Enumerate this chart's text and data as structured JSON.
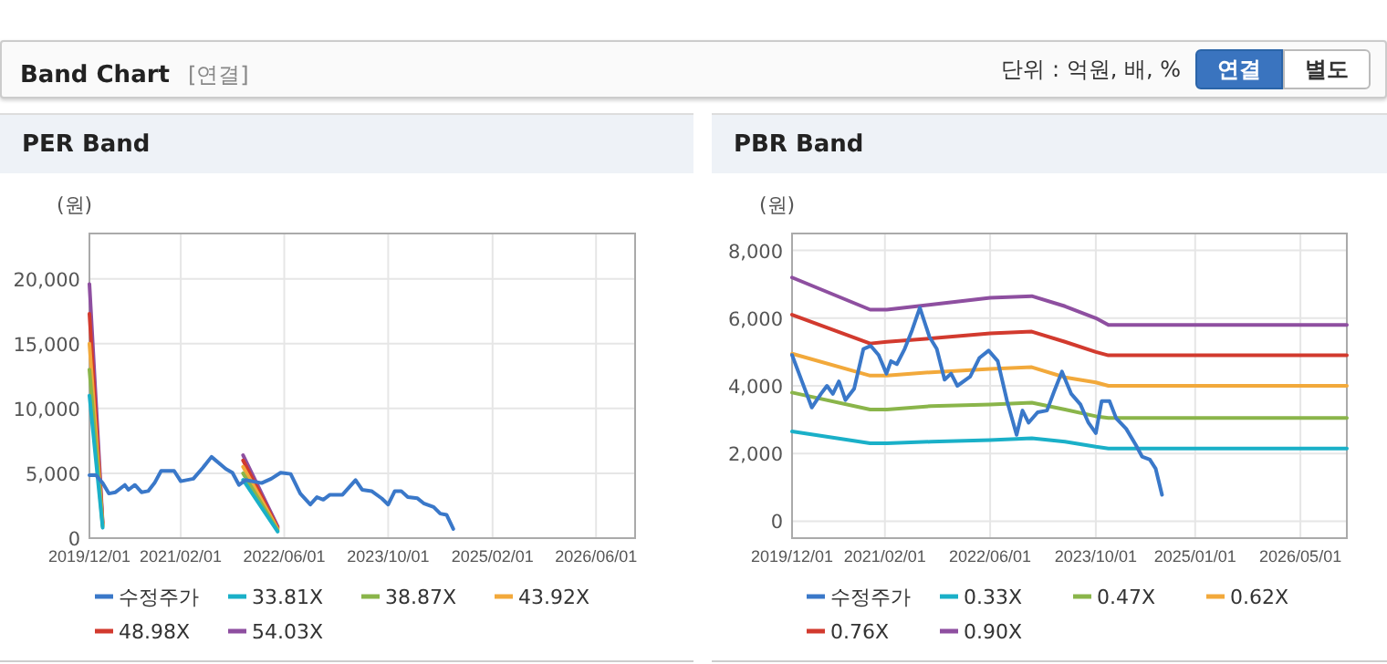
{
  "chart_data": [
    {
      "type": "other",
      "title": "Band Chart",
      "annotations": [
        "[연결]",
        "단위 : 억원, 배, %",
        "연결",
        "별도"
      ]
    },
    {
      "type": "line",
      "title": "PER Band",
      "ylabel": "(원)",
      "grid": true,
      "legend": "bottom",
      "xlim": [
        "2019-12-01",
        "2026-12-01"
      ],
      "ylim": [
        0,
        23500
      ],
      "xticks": [
        {
          "value": "2019-12-01",
          "label": "2019/12/01"
        },
        {
          "value": "2021-02-01",
          "label": "2021/02/01"
        },
        {
          "value": "2022-06-01",
          "label": "2022/06/01"
        },
        {
          "value": "2023-10-01",
          "label": "2023/10/01"
        },
        {
          "value": "2025-02-01",
          "label": "2025/02/01"
        },
        {
          "value": "2026-06-01",
          "label": "2026/06/01"
        }
      ],
      "yticks": [
        0,
        {
          "value": 5000,
          "label": "5,000"
        },
        {
          "value": 10000,
          "label": "10,000"
        },
        {
          "value": 15000,
          "label": "15,000"
        },
        {
          "value": 20000,
          "label": "20,000"
        }
      ],
      "series": [
        {
          "name": "수정주가",
          "color": "#3a78c9",
          "x": [
            "2019-12-01",
            "2020-01-01",
            "2020-02-01",
            "2020-03-01",
            "2020-04-01",
            "2020-05-15",
            "2020-06-01",
            "2020-07-01",
            "2020-08-01",
            "2020-09-01",
            "2020-10-01",
            "2020-11-01",
            "2021-01-01",
            "2021-02-01",
            "2021-04-01",
            "2021-05-15",
            "2021-06-25",
            "2021-09-01",
            "2021-10-01",
            "2021-11-01",
            "2021-12-01",
            "2022-02-15",
            "2022-04-01",
            "2022-05-15",
            "2022-07-01",
            "2022-08-15",
            "2022-10-01",
            "2022-11-01",
            "2022-12-01",
            "2023-01-01",
            "2023-03-01",
            "2023-05-01",
            "2023-06-01",
            "2023-07-15",
            "2023-09-01",
            "2023-10-01",
            "2023-11-01",
            "2023-12-01",
            "2024-01-01",
            "2024-02-15",
            "2024-03-15",
            "2024-05-01",
            "2024-06-01",
            "2024-07-01",
            "2024-08-01"
          ],
          "values": [
            4860,
            4860,
            4250,
            3440,
            3540,
            4100,
            3730,
            4100,
            3540,
            3630,
            4250,
            5190,
            5190,
            4390,
            4580,
            5420,
            6270,
            5330,
            5050,
            4100,
            4480,
            4250,
            4580,
            5050,
            4950,
            3440,
            2590,
            3160,
            2970,
            3350,
            3350,
            4480,
            3730,
            3630,
            3060,
            2590,
            3630,
            3630,
            3160,
            3070,
            2690,
            2400,
            1890,
            1790,
            710
          ]
        },
        {
          "name": "33.81X",
          "color": "#1ab0c8",
          "x": [
            "2019-12-01",
            "2020-02-01",
            "2021-01-01",
            "2021-11-20",
            "2022-05-01"
          ],
          "values": [
            11000,
            800,
            null,
            4500,
            500
          ]
        },
        {
          "name": "38.87X",
          "color": "#8ab54a",
          "x": [
            "2019-12-01",
            "2020-02-01",
            "2021-01-01",
            "2021-11-20",
            "2022-05-01"
          ],
          "values": [
            13000,
            900,
            null,
            5000,
            600
          ]
        },
        {
          "name": "43.92X",
          "color": "#f2a93b",
          "x": [
            "2019-12-01",
            "2020-02-01",
            "2021-01-01",
            "2021-11-20",
            "2022-05-01"
          ],
          "values": [
            15000,
            1000,
            null,
            5500,
            700
          ]
        },
        {
          "name": "48.98X",
          "color": "#d23a2e",
          "x": [
            "2019-12-01",
            "2020-02-01",
            "2021-01-01",
            "2021-11-20",
            "2022-05-01"
          ],
          "values": [
            17300,
            1100,
            null,
            6000,
            800
          ]
        },
        {
          "name": "54.03X",
          "color": "#8e4fa0",
          "x": [
            "2019-12-01",
            "2020-02-01",
            "2021-01-01",
            "2021-11-20",
            "2022-05-01"
          ],
          "values": [
            19600,
            1200,
            null,
            6400,
            900
          ]
        }
      ]
    },
    {
      "type": "line",
      "title": "PBR Band",
      "ylabel": "(원)",
      "grid": true,
      "legend": "bottom",
      "xlim": [
        "2019-12-01",
        "2026-12-01"
      ],
      "ylim": [
        -500,
        8500
      ],
      "xticks": [
        {
          "value": "2019-12-01",
          "label": "2019/12/01"
        },
        {
          "value": "2021-02-01",
          "label": "2021/02/01"
        },
        {
          "value": "2022-06-01",
          "label": "2022/06/01"
        },
        {
          "value": "2023-10-01",
          "label": "2023/10/01"
        },
        {
          "value": "2025-01-01",
          "label": "2025/01/01"
        },
        {
          "value": "2026-05-01",
          "label": "2026/05/01"
        }
      ],
      "yticks": [
        0,
        {
          "value": 2000,
          "label": "2,000"
        },
        {
          "value": 4000,
          "label": "4,000"
        },
        {
          "value": 6000,
          "label": "6,000"
        },
        {
          "value": 8000,
          "label": "8,000"
        }
      ],
      "series": [
        {
          "name": "수정주가",
          "color": "#3a78c9",
          "x": [
            "2019-12-01",
            "2020-01-18",
            "2020-03-01",
            "2020-04-12",
            "2020-05-10",
            "2020-06-06",
            "2020-07-04",
            "2020-08-03",
            "2020-09-12",
            "2020-10-25",
            "2020-11-28",
            "2021-01-03",
            "2021-02-08",
            "2021-03-01",
            "2021-03-28",
            "2021-05-03",
            "2021-06-06",
            "2021-07-12",
            "2021-08-25",
            "2021-09-28",
            "2021-11-03",
            "2021-12-03",
            "2022-01-01",
            "2022-03-01",
            "2022-04-12",
            "2022-05-25",
            "2022-07-06",
            "2022-08-18",
            "2022-10-01",
            "2022-10-28",
            "2022-11-25",
            "2023-01-06",
            "2023-02-18",
            "2023-03-22",
            "2023-04-28",
            "2023-06-10",
            "2023-07-22",
            "2023-08-28",
            "2023-10-01",
            "2023-10-28",
            "2023-12-03",
            "2024-01-03",
            "2024-02-18",
            "2024-04-01",
            "2024-05-01",
            "2024-06-06",
            "2024-07-03",
            "2024-08-01"
          ],
          "values": [
            4910,
            4090,
            3360,
            3760,
            4000,
            3760,
            4130,
            3580,
            3910,
            5090,
            5180,
            4910,
            4360,
            4730,
            4640,
            5090,
            5640,
            6310,
            5450,
            5090,
            4180,
            4360,
            4000,
            4270,
            4820,
            5040,
            4730,
            3550,
            2550,
            3270,
            2910,
            3220,
            3270,
            3820,
            4420,
            3760,
            3450,
            2910,
            2600,
            3550,
            3550,
            3040,
            2730,
            2270,
            1910,
            1820,
            1550,
            780
          ]
        },
        {
          "name": "0.33X",
          "color": "#1ab0c8",
          "x": [
            "2019-12-01",
            "2020-11-25",
            "2021-02-10",
            "2021-09-01",
            "2022-06-01",
            "2022-12-10",
            "2023-05-12",
            "2023-10-01",
            "2023-11-28",
            "2026-12-01"
          ],
          "values": [
            2650,
            2300,
            2300,
            2350,
            2400,
            2450,
            2350,
            2200,
            2150,
            2150
          ]
        },
        {
          "name": "0.47X",
          "color": "#8ab54a",
          "x": [
            "2019-12-01",
            "2020-11-25",
            "2021-02-10",
            "2021-09-01",
            "2022-06-01",
            "2022-12-10",
            "2023-05-12",
            "2023-10-01",
            "2023-11-28",
            "2026-12-01"
          ],
          "values": [
            3800,
            3300,
            3300,
            3400,
            3450,
            3500,
            3300,
            3100,
            3050,
            3050
          ]
        },
        {
          "name": "0.62X",
          "color": "#f2a93b",
          "x": [
            "2019-12-01",
            "2020-11-25",
            "2021-02-10",
            "2021-09-01",
            "2022-06-01",
            "2022-12-10",
            "2023-05-12",
            "2023-10-01",
            "2023-11-28",
            "2026-12-01"
          ],
          "values": [
            4950,
            4300,
            4300,
            4400,
            4500,
            4550,
            4250,
            4100,
            4000,
            4000
          ]
        },
        {
          "name": "0.76X",
          "color": "#d23a2e",
          "x": [
            "2019-12-01",
            "2020-11-25",
            "2021-02-10",
            "2021-09-01",
            "2022-06-01",
            "2022-12-10",
            "2023-05-12",
            "2023-10-01",
            "2023-11-28",
            "2026-12-01"
          ],
          "values": [
            6100,
            5250,
            5300,
            5400,
            5550,
            5600,
            5300,
            5000,
            4900,
            4900
          ]
        },
        {
          "name": "0.90X",
          "color": "#8e4fa0",
          "x": [
            "2019-12-01",
            "2020-11-25",
            "2021-02-10",
            "2021-09-01",
            "2022-06-01",
            "2022-12-10",
            "2023-05-12",
            "2023-10-01",
            "2023-11-28",
            "2026-12-01"
          ],
          "values": [
            7200,
            6250,
            6250,
            6400,
            6600,
            6650,
            6350,
            6000,
            5800,
            5800
          ]
        }
      ]
    }
  ]
}
